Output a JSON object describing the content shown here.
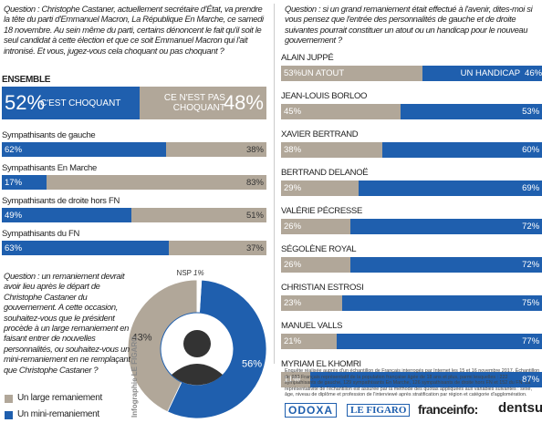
{
  "chart_data": [
    {
      "type": "bar",
      "orientation": "horizontal",
      "stacked": true,
      "question": "Question : Christophe Castaner, actuellement secrétaire d'État, va prendre la tête du parti d'Emmanuel Macron, La République En Marche, ce samedi 18 novembre. Au sein même du parti, certains dénoncent le fait qu'il soit le seul candidat à cette élection et que ce soit Emmanuel Macron qui l'ait intronisé. Et vous, jugez-vous cela choquant ou pas choquant ?",
      "categories": [
        "ENSEMBLE",
        "Sympathisants de gauche",
        "Sympathisants En Marche",
        "Sympathisants de droite hors FN",
        "Sympathisants du FN"
      ],
      "series": [
        {
          "name": "C'EST CHOQUANT",
          "color": "#1f5fae",
          "values": [
            52,
            62,
            17,
            49,
            63
          ],
          "value_labels": [
            "52%",
            "62%",
            "17%",
            "49%",
            "63%"
          ]
        },
        {
          "name": "CE N'EST PAS CHOQUANT",
          "color": "#b1a799",
          "values": [
            48,
            38,
            83,
            51,
            37
          ],
          "value_labels": [
            "48%",
            "38%",
            "83%",
            "51%",
            "37%"
          ]
        }
      ]
    },
    {
      "type": "pie",
      "question": "Question : un remaniement devrait avoir lieu après le départ de Christophe Castaner du gouvernement. A cette occasion, souhaitez-vous que le président procède à un large remaniement en faisant entrer de nouvelles personnalités, ou souhaitez-vous un mini-remaniement en ne remplaçant que Christophe Castaner ?",
      "categories": [
        "Un large remaniement",
        "Un mini-remaniement",
        "NSP"
      ],
      "values": [
        43,
        56,
        1
      ],
      "value_labels": [
        "43%",
        "56%",
        "1%"
      ],
      "colors": [
        "#b1a799",
        "#1f5fae",
        "#ffffff"
      ]
    },
    {
      "type": "bar",
      "orientation": "horizontal",
      "stacked": true,
      "question": "Question : si un grand remaniement était effectué à l'avenir, dites-moi si vous pensez que l'entrée des personnalités de gauche et de droite suivantes pourrait constituer un atout ou un handicap pour le nouveau gouvernement ?",
      "categories": [
        "ALAIN JUPPÉ",
        "JEAN-LOUIS BORLOO",
        "XAVIER BERTRAND",
        "BERTRAND DELANOË",
        "VALÉRIE PÉCRESSE",
        "SÉGOLÈNE ROYAL",
        "CHRISTIAN ESTROSI",
        "MANUEL VALLS",
        "MYRIAM EL KHOMRI"
      ],
      "series": [
        {
          "name": "UN ATOUT",
          "color": "#b1a799",
          "values": [
            53,
            45,
            38,
            29,
            26,
            26,
            23,
            21,
            11
          ],
          "value_labels": [
            "53%",
            "45%",
            "38%",
            "29%",
            "26%",
            "26%",
            "23%",
            "21%",
            "11%"
          ]
        },
        {
          "name": "UN HANDICAP",
          "color": "#1f5fae",
          "values": [
            46,
            53,
            60,
            69,
            72,
            72,
            75,
            77,
            87
          ],
          "value_labels": [
            "46%",
            "53%",
            "60%",
            "69%",
            "72%",
            "72%",
            "75%",
            "77%",
            "87%"
          ]
        },
        {
          "name": "NSP",
          "color": "#ffffff",
          "values": [
            1,
            2,
            2,
            2,
            2,
            2,
            2,
            2,
            2
          ]
        }
      ]
    }
  ],
  "footnote": "Enquête réalisée auprès d'un échantillon de Français interrogés par Internet les 15 et 16 novembre 2017. Échantillon de 983 Français représentatif de la population française âgée de 18 ans et plus, parmi lesquelles : 222 sympathisants de gauche, 129 sympathisants En Marche, 126 sympathisants de droite hors FN et 152 du FN. La représentativité de l'échantillon est assurée par la méthode des quotas appliquées aux variables suivantes : sexe, âge, niveau de diplôme et profession de l'interviewé après stratification par région et catégorie d'agglomération.",
  "credit": "Infographie LE FIGARO",
  "logos": [
    "ODOXA",
    "LE FIGARO",
    "franceinfo:",
    "dentsu"
  ]
}
